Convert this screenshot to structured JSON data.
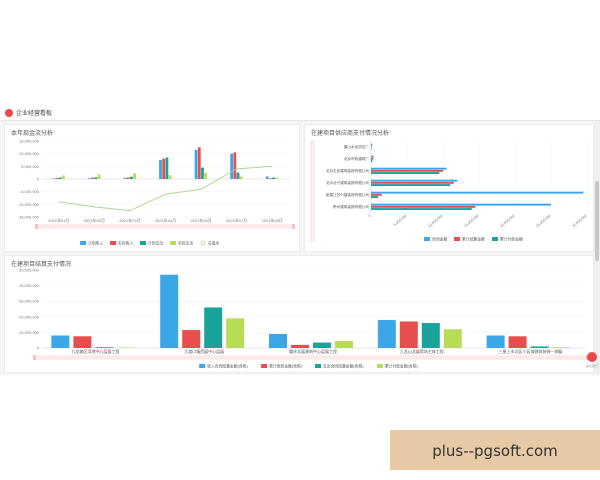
{
  "header": {
    "title": "企业经营看板"
  },
  "chat": {
    "label": "联系我们"
  },
  "watermark": {
    "text": "plus--pgsoft.com"
  },
  "chart_data": [
    {
      "type": "bar",
      "title": "本年现金流分析",
      "categories": [
        "2021年01月",
        "2021年02月",
        "2021年03月",
        "2021年04月",
        "2021年05月",
        "2021年07月",
        "2021年08月"
      ],
      "ylim": [
        -15000000,
        15000000
      ],
      "yticks": [
        "15,000,000",
        "10,000,000",
        "5,000,000",
        "0",
        "-5,000,000",
        "-10,000,000",
        "-15,000,000"
      ],
      "ytick_values": [
        15000000,
        10000000,
        5000000,
        0,
        -5000000,
        -10000000,
        -15000000
      ],
      "series": [
        {
          "name": "计划收入",
          "color": "#3ba7e8",
          "values": [
            200000,
            300000,
            500000,
            7500000,
            11500000,
            10000000,
            1000000
          ]
        },
        {
          "name": "实际收入",
          "color": "#e84e4e",
          "values": [
            400000,
            500000,
            600000,
            8000000,
            12500000,
            10500000,
            300000
          ]
        },
        {
          "name": "计划支出",
          "color": "#1aa39a",
          "values": [
            600000,
            700000,
            900000,
            8500000,
            4500000,
            2500000,
            600000
          ]
        },
        {
          "name": "实际支出",
          "color": "#b8dc55",
          "values": [
            1400000,
            1800000,
            2200000,
            1500000,
            2500000,
            1000000,
            500000
          ]
        }
      ],
      "line": {
        "name": "总盈余",
        "color": "#a8d58a",
        "values": [
          -9000000,
          -11000000,
          -12500000,
          -6000000,
          -4000000,
          4000000,
          5000000
        ]
      }
    },
    {
      "type": "bar",
      "title": "在建项目供应商支付情况分析",
      "orientation": "horizontal",
      "categories": [
        "康山水站供应厂",
        "北京市政建筑厂",
        "北京无双建筑装修有限公司",
        "北京北兴建筑装修有限公司",
        "新建江苏兴建装修有限公司",
        "黔州建筑装修有限公司"
      ],
      "xlim": [
        0,
        30000000
      ],
      "xticks": [
        "0",
        "5,000,000",
        "10,000,000",
        "15,000,000",
        "20,000,000",
        "25,000,000",
        "30,000,000"
      ],
      "xtick_values": [
        0,
        5000000,
        10000000,
        15000000,
        20000000,
        25000000,
        30000000
      ],
      "series": [
        {
          "name": "合同金额",
          "color": "#3ba7e8",
          "values": [
            200000,
            400000,
            10500000,
            12000000,
            29500000,
            25000000
          ]
        },
        {
          "name": "累计结算金额",
          "color": "#e84e4e",
          "values": [
            100000,
            300000,
            10000000,
            11500000,
            1500000,
            14500000
          ]
        },
        {
          "name": "累计付款金额",
          "color": "#1aa39a",
          "values": [
            50000,
            200000,
            9500000,
            11000000,
            1000000,
            14000000
          ]
        }
      ]
    },
    {
      "type": "bar",
      "title": "在建项目结算支付情况",
      "categories": [
        "九龙坡区湾地中心层展工程",
        "大渡口镇西展中心层展",
        "重庆北展建筑中心层展工程",
        "九龙山北展馆场主体工程",
        "三星上市北区小区域建筑装修一期级"
      ],
      "ylim": [
        0,
        50000000
      ],
      "yticks": [
        "50,000,000",
        "40,000,000",
        "30,000,000",
        "20,000,000",
        "10,000,000",
        "0"
      ],
      "ytick_values": [
        50000000,
        40000000,
        30000000,
        20000000,
        10000000,
        0
      ],
      "series": [
        {
          "name": "收入合同结算金额(含税)",
          "color": "#3ba7e8",
          "values": [
            8000000,
            47000000,
            9000000,
            18000000,
            8000000
          ]
        },
        {
          "name": "累计收款金额(含税)",
          "color": "#e84e4e",
          "values": [
            7500000,
            11500000,
            2000000,
            17000000,
            7500000
          ]
        },
        {
          "name": "支出合同结算金额(含税)",
          "color": "#1aa39a",
          "values": [
            500000,
            26000000,
            3500000,
            16000000,
            1000000
          ]
        },
        {
          "name": "累计付款金额(含税)",
          "color": "#b8dc55",
          "values": [
            300000,
            19000000,
            4500000,
            12000000,
            500000
          ]
        }
      ]
    }
  ]
}
